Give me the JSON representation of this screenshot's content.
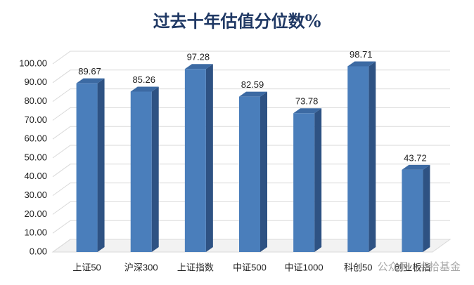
{
  "chart_data": {
    "type": "bar3d",
    "title": "过去十年估值分位数%",
    "categories": [
      "上证50",
      "沪深300",
      "上证指数",
      "中证500",
      "中证1000",
      "科创50",
      "创业板指"
    ],
    "values": [
      89.67,
      85.26,
      97.28,
      82.59,
      73.78,
      98.71,
      43.72
    ],
    "color": "#4a7ebb",
    "ylim": [
      0,
      100
    ],
    "yticks": [
      {
        "value": 0,
        "label": "0.00"
      },
      {
        "value": 10,
        "label": "10.00"
      },
      {
        "value": 20,
        "label": "20.00"
      },
      {
        "value": 30,
        "label": "30.00"
      },
      {
        "value": 40,
        "label": "40.00"
      },
      {
        "value": 50,
        "label": "50.00"
      },
      {
        "value": 60,
        "label": "60.00"
      },
      {
        "value": 70,
        "label": "70.00"
      },
      {
        "value": 80,
        "label": "80.00"
      },
      {
        "value": 90,
        "label": "90.00"
      },
      {
        "value": 100,
        "label": "100.00"
      }
    ],
    "grid": true,
    "watermark": "公众号 · 点拾基金"
  }
}
